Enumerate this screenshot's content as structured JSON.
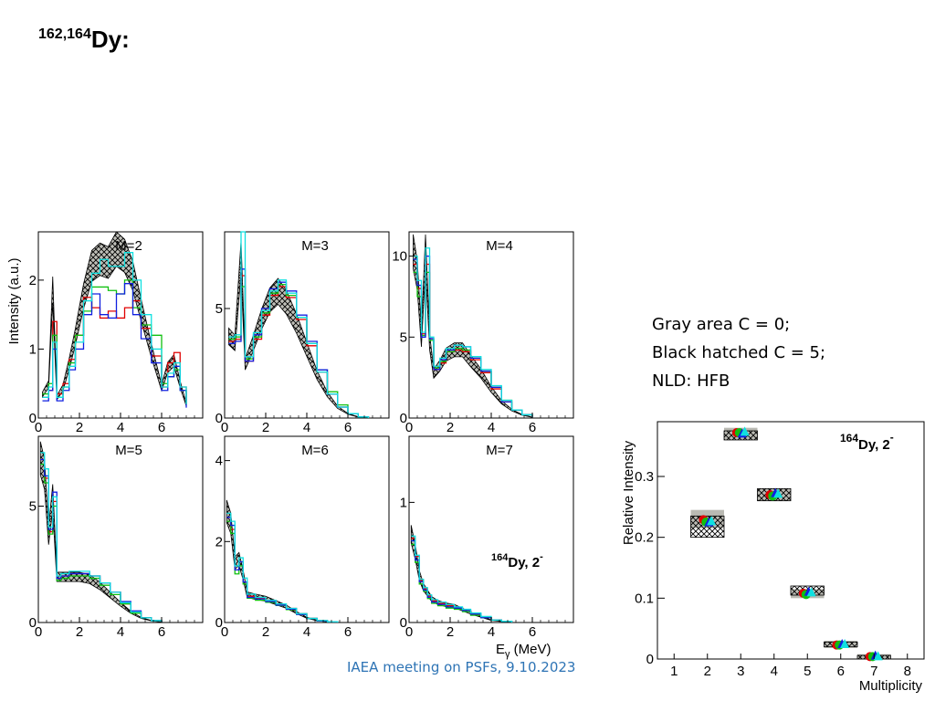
{
  "title": {
    "mass": "162,164",
    "element": "Dy:"
  },
  "notes": [
    "Gray area C = 0;",
    "Black hatched C = 5;",
    "NLD: HFB"
  ],
  "footer": "IAEA meeting on PSFs, 9.10.2023",
  "colors": {
    "gray_band": "#a9a9a0",
    "hatch": "#000000",
    "red": "#e00000",
    "green": "#10c010",
    "blue": "#1020e0",
    "cyan": "#10e0e0",
    "dblue": "#2020a0"
  },
  "chart_data": [
    {
      "type": "line",
      "title": "M=2",
      "ylabel": "Intensity (a.u.)",
      "xlim": [
        0,
        8
      ],
      "ylim": [
        0,
        2.7
      ],
      "xticks": [
        "0",
        "2",
        "4",
        "6"
      ],
      "yticks": [
        "0",
        "1",
        "2"
      ],
      "ytick_values": [
        0,
        1,
        2
      ],
      "x": [
        0.2,
        0.5,
        0.7,
        0.9,
        1.2,
        1.5,
        1.8,
        2.2,
        2.6,
        3.0,
        3.4,
        3.8,
        4.2,
        4.6,
        5.0,
        5.5,
        6.0,
        6.3,
        6.6,
        6.9,
        7.2
      ],
      "band": [
        0.35,
        0.5,
        1.9,
        0.3,
        0.45,
        0.8,
        1.2,
        1.8,
        2.25,
        2.35,
        2.3,
        2.5,
        2.4,
        2.1,
        1.6,
        1.0,
        0.45,
        0.75,
        0.85,
        0.5,
        0.2
      ],
      "series": [
        {
          "color_key": "red",
          "values": [
            0.3,
            0.4,
            1.4,
            0.35,
            0.5,
            0.85,
            1.2,
            1.75,
            1.6,
            1.45,
            1.55,
            1.45,
            1.6,
            1.7,
            1.3,
            0.9,
            0.45,
            0.8,
            0.95,
            0.45,
            0.2
          ]
        },
        {
          "color_key": "green",
          "values": [
            0.35,
            0.5,
            1.2,
            0.3,
            0.45,
            0.8,
            1.2,
            1.55,
            1.9,
            1.9,
            1.85,
            1.8,
            2.0,
            1.6,
            1.35,
            1.2,
            0.5,
            0.6,
            0.7,
            0.4,
            0.2
          ]
        },
        {
          "color_key": "blue",
          "values": [
            0.25,
            0.4,
            1.0,
            0.25,
            0.4,
            0.7,
            1.0,
            1.5,
            1.8,
            1.5,
            1.45,
            1.8,
            1.95,
            1.5,
            1.15,
            0.8,
            0.4,
            0.6,
            0.75,
            0.4,
            0.15
          ]
        },
        {
          "color_key": "cyan",
          "values": [
            0.3,
            0.45,
            1.1,
            0.3,
            0.45,
            0.75,
            1.1,
            1.7,
            2.1,
            2.3,
            2.2,
            2.2,
            2.4,
            2.0,
            1.5,
            1.0,
            0.45,
            0.65,
            0.8,
            0.45,
            0.2
          ]
        }
      ]
    },
    {
      "type": "line",
      "title": "M=3",
      "xlim": [
        0,
        8
      ],
      "ylim": [
        0,
        8.5
      ],
      "xticks": [
        "0",
        "2",
        "4",
        "6"
      ],
      "yticks": [
        "0",
        "5"
      ],
      "ytick_values": [
        0,
        5
      ],
      "x": [
        0.2,
        0.5,
        0.8,
        1.0,
        1.4,
        1.8,
        2.2,
        2.6,
        3.0,
        3.5,
        4.0,
        4.5,
        5.0,
        5.5,
        6.0,
        6.5,
        7.0
      ],
      "band": [
        3.8,
        3.5,
        7.5,
        2.5,
        3.5,
        4.6,
        5.5,
        5.9,
        5.4,
        4.4,
        3.2,
        2.0,
        1.1,
        0.5,
        0.2,
        0.05,
        0.0
      ],
      "series": [
        {
          "color_key": "red",
          "values": [
            3.5,
            3.6,
            6.5,
            2.6,
            3.6,
            4.7,
            5.6,
            6.0,
            5.5,
            4.5,
            3.3,
            2.1,
            1.1,
            0.5,
            0.2,
            0.05,
            0.0
          ]
        },
        {
          "color_key": "green",
          "values": [
            3.6,
            3.7,
            6.0,
            2.7,
            3.7,
            4.8,
            5.7,
            6.1,
            5.6,
            4.6,
            3.4,
            2.2,
            1.2,
            0.6,
            0.2,
            0.05,
            0.0
          ]
        },
        {
          "color_key": "blue",
          "values": [
            3.4,
            3.5,
            6.8,
            2.6,
            3.8,
            5.0,
            5.9,
            6.2,
            5.8,
            4.7,
            3.5,
            2.2,
            1.1,
            0.5,
            0.2,
            0.05,
            0.0
          ]
        },
        {
          "color_key": "cyan",
          "values": [
            3.7,
            3.8,
            8.5,
            2.8,
            3.9,
            4.9,
            5.8,
            6.3,
            5.7,
            4.6,
            3.4,
            2.1,
            1.1,
            0.5,
            0.2,
            0.05,
            0.0
          ]
        }
      ]
    },
    {
      "type": "line",
      "title": "M=4",
      "xlim": [
        0,
        8
      ],
      "ylim": [
        0,
        11.5
      ],
      "xticks": [
        "0",
        "2",
        "4",
        "6"
      ],
      "yticks": [
        "0",
        "5",
        "10"
      ],
      "ytick_values": [
        0,
        5,
        10
      ],
      "x": [
        0.2,
        0.4,
        0.6,
        0.8,
        1.0,
        1.2,
        1.5,
        1.8,
        2.2,
        2.6,
        3.0,
        3.5,
        4.0,
        4.5,
        5.0,
        5.5,
        6.0
      ],
      "band": [
        10.5,
        9.0,
        5.0,
        10.5,
        4.8,
        2.8,
        3.3,
        4.0,
        4.3,
        4.3,
        3.6,
        2.8,
        1.8,
        1.0,
        0.5,
        0.2,
        0.05
      ],
      "series": [
        {
          "color_key": "red",
          "values": [
            9.5,
            8.0,
            5.2,
            9.5,
            4.9,
            3.0,
            3.4,
            4.1,
            4.2,
            4.1,
            3.6,
            2.8,
            1.8,
            1.0,
            0.5,
            0.2,
            0.05
          ]
        },
        {
          "color_key": "green",
          "values": [
            9.0,
            7.5,
            5.1,
            9.0,
            4.8,
            3.1,
            3.5,
            4.1,
            4.3,
            4.2,
            3.7,
            2.9,
            1.9,
            1.1,
            0.5,
            0.2,
            0.05
          ]
        },
        {
          "color_key": "blue",
          "values": [
            9.8,
            8.2,
            5.0,
            10.0,
            4.9,
            3.0,
            3.6,
            4.2,
            4.5,
            4.4,
            3.7,
            2.9,
            1.9,
            1.0,
            0.5,
            0.2,
            0.05
          ]
        },
        {
          "color_key": "cyan",
          "values": [
            10.0,
            8.5,
            5.3,
            10.5,
            5.0,
            3.2,
            3.7,
            4.3,
            4.5,
            4.4,
            3.8,
            3.0,
            2.0,
            1.1,
            0.5,
            0.2,
            0.05
          ]
        }
      ]
    },
    {
      "type": "line",
      "title": "M=5",
      "xlim": [
        0,
        8
      ],
      "ylim": [
        0,
        8.0
      ],
      "xticks": [
        "0",
        "2",
        "4",
        "6"
      ],
      "yticks": [
        "0",
        "5"
      ],
      "ytick_values": [
        0,
        5
      ],
      "x": [
        0.1,
        0.3,
        0.5,
        0.7,
        0.9,
        1.1,
        1.5,
        2.0,
        2.5,
        3.0,
        3.5,
        4.0,
        4.5,
        5.0,
        5.5,
        6.0
      ],
      "band": [
        7.2,
        6.5,
        3.8,
        5.5,
        2.0,
        2.0,
        2.0,
        2.0,
        1.9,
        1.6,
        1.2,
        0.8,
        0.45,
        0.2,
        0.08,
        0.02
      ],
      "series": [
        {
          "color_key": "red",
          "values": [
            7.0,
            6.2,
            3.9,
            5.2,
            1.9,
            2.0,
            2.1,
            2.1,
            2.0,
            1.7,
            1.3,
            0.8,
            0.45,
            0.2,
            0.08,
            0.02
          ]
        },
        {
          "color_key": "green",
          "values": [
            6.8,
            6.0,
            3.8,
            5.0,
            1.8,
            1.9,
            2.0,
            2.0,
            1.9,
            1.6,
            1.2,
            0.8,
            0.4,
            0.2,
            0.08,
            0.02
          ]
        },
        {
          "color_key": "blue",
          "values": [
            7.0,
            6.3,
            4.0,
            5.6,
            1.9,
            2.0,
            2.1,
            2.1,
            2.0,
            1.7,
            1.3,
            0.9,
            0.5,
            0.2,
            0.08,
            0.02
          ]
        },
        {
          "color_key": "cyan",
          "values": [
            7.3,
            6.6,
            4.1,
            5.4,
            2.0,
            2.1,
            2.2,
            2.2,
            2.0,
            1.7,
            1.3,
            0.85,
            0.45,
            0.2,
            0.08,
            0.02
          ]
        }
      ]
    },
    {
      "type": "line",
      "title": "M=6",
      "xlim": [
        0,
        8
      ],
      "ylim": [
        0,
        4.6
      ],
      "xticks": [
        "0",
        "2",
        "4",
        "6"
      ],
      "yticks": [
        "0",
        "2",
        "4"
      ],
      "ytick_values": [
        0,
        2,
        4
      ],
      "x": [
        0.1,
        0.3,
        0.5,
        0.7,
        0.9,
        1.1,
        1.5,
        2.0,
        2.5,
        3.0,
        3.5,
        4.0,
        4.5,
        5.0,
        5.5
      ],
      "band": [
        2.8,
        2.5,
        1.5,
        1.6,
        1.2,
        0.7,
        0.65,
        0.6,
        0.5,
        0.4,
        0.25,
        0.12,
        0.05,
        0.02,
        0.0
      ],
      "series": [
        {
          "color_key": "red",
          "values": [
            2.6,
            2.3,
            1.3,
            1.5,
            1.0,
            0.65,
            0.6,
            0.55,
            0.45,
            0.35,
            0.22,
            0.1,
            0.05,
            0.02,
            0.0
          ]
        },
        {
          "color_key": "green",
          "values": [
            2.5,
            2.2,
            1.2,
            1.4,
            0.95,
            0.6,
            0.55,
            0.5,
            0.42,
            0.32,
            0.2,
            0.1,
            0.04,
            0.02,
            0.0
          ]
        },
        {
          "color_key": "blue",
          "values": [
            2.6,
            2.4,
            1.3,
            1.5,
            1.0,
            0.62,
            0.58,
            0.52,
            0.43,
            0.33,
            0.2,
            0.1,
            0.04,
            0.02,
            0.0
          ]
        },
        {
          "color_key": "cyan",
          "values": [
            2.7,
            2.5,
            1.4,
            1.6,
            1.1,
            0.7,
            0.62,
            0.55,
            0.46,
            0.35,
            0.22,
            0.1,
            0.05,
            0.02,
            0.0
          ]
        }
      ]
    },
    {
      "type": "line",
      "title": "M=7",
      "annotation_sup": "164",
      "annotation_main": "Dy, 2",
      "annotation_minus": "-",
      "xlabel_main": "E",
      "xlabel_sub": "γ",
      "xlabel_rest": " (MeV)",
      "xlim": [
        0,
        8
      ],
      "ylim": [
        0,
        1.55
      ],
      "xticks": [
        "0",
        "2",
        "4",
        "6"
      ],
      "yticks": [
        "0",
        "1"
      ],
      "ytick_values": [
        0,
        1
      ],
      "x": [
        0.1,
        0.3,
        0.5,
        0.7,
        0.9,
        1.1,
        1.4,
        1.8,
        2.2,
        2.6,
        3.0,
        3.5,
        4.0,
        4.5,
        5.0
      ],
      "band": [
        0.75,
        0.6,
        0.4,
        0.3,
        0.25,
        0.2,
        0.17,
        0.15,
        0.14,
        0.11,
        0.08,
        0.05,
        0.02,
        0.01,
        0.0
      ],
      "series": [
        {
          "color_key": "red",
          "values": [
            0.7,
            0.55,
            0.35,
            0.28,
            0.22,
            0.18,
            0.16,
            0.14,
            0.12,
            0.1,
            0.07,
            0.04,
            0.02,
            0.01,
            0.0
          ]
        },
        {
          "color_key": "green",
          "values": [
            0.65,
            0.5,
            0.32,
            0.26,
            0.2,
            0.16,
            0.14,
            0.12,
            0.11,
            0.09,
            0.06,
            0.04,
            0.02,
            0.01,
            0.0
          ]
        },
        {
          "color_key": "blue",
          "values": [
            0.68,
            0.52,
            0.34,
            0.27,
            0.21,
            0.17,
            0.15,
            0.13,
            0.12,
            0.1,
            0.07,
            0.04,
            0.02,
            0.01,
            0.0
          ]
        },
        {
          "color_key": "cyan",
          "values": [
            0.72,
            0.56,
            0.36,
            0.29,
            0.23,
            0.19,
            0.17,
            0.15,
            0.13,
            0.11,
            0.08,
            0.05,
            0.02,
            0.01,
            0.0
          ]
        }
      ]
    },
    {
      "type": "scatter",
      "title_sup": "164",
      "title_main": "Dy, 2",
      "title_minus": "-",
      "xlabel": "Multiplicity",
      "ylabel": "Relative Intensity",
      "xlim": [
        0.5,
        8.5
      ],
      "ylim": [
        0,
        0.39
      ],
      "xticks": [
        "1",
        "2",
        "3",
        "4",
        "5",
        "6",
        "7",
        "8"
      ],
      "xtick_values": [
        1,
        2,
        3,
        4,
        5,
        6,
        7,
        8
      ],
      "yticks": [
        "0",
        "0.1",
        "0.2",
        "0.3"
      ],
      "ytick_values": [
        0,
        0.1,
        0.2,
        0.3
      ],
      "multiplicity": [
        2,
        3,
        4,
        5,
        6,
        7
      ],
      "gray_band": [
        [
          0.215,
          0.245
        ],
        [
          0.36,
          0.38
        ],
        [
          0.26,
          0.28
        ],
        [
          0.1,
          0.115
        ],
        [
          0.018,
          0.03
        ],
        [
          0.0,
          0.008
        ]
      ],
      "hatch_band": [
        [
          0.2,
          0.235
        ],
        [
          0.36,
          0.375
        ],
        [
          0.26,
          0.28
        ],
        [
          0.105,
          0.12
        ],
        [
          0.02,
          0.028
        ],
        [
          0.0,
          0.006
        ]
      ],
      "series": [
        {
          "color_key": "red",
          "values": [
            0.229,
            0.372,
            0.27,
            0.108,
            0.023,
            0.004
          ]
        },
        {
          "color_key": "green",
          "values": [
            0.225,
            0.372,
            0.268,
            0.106,
            0.023,
            0.004
          ]
        },
        {
          "color_key": "blue",
          "values": [
            0.224,
            0.37,
            0.272,
            0.11,
            0.024,
            0.005
          ]
        },
        {
          "color_key": "cyan",
          "values": [
            0.226,
            0.373,
            0.271,
            0.109,
            0.024,
            0.004
          ]
        }
      ]
    }
  ]
}
